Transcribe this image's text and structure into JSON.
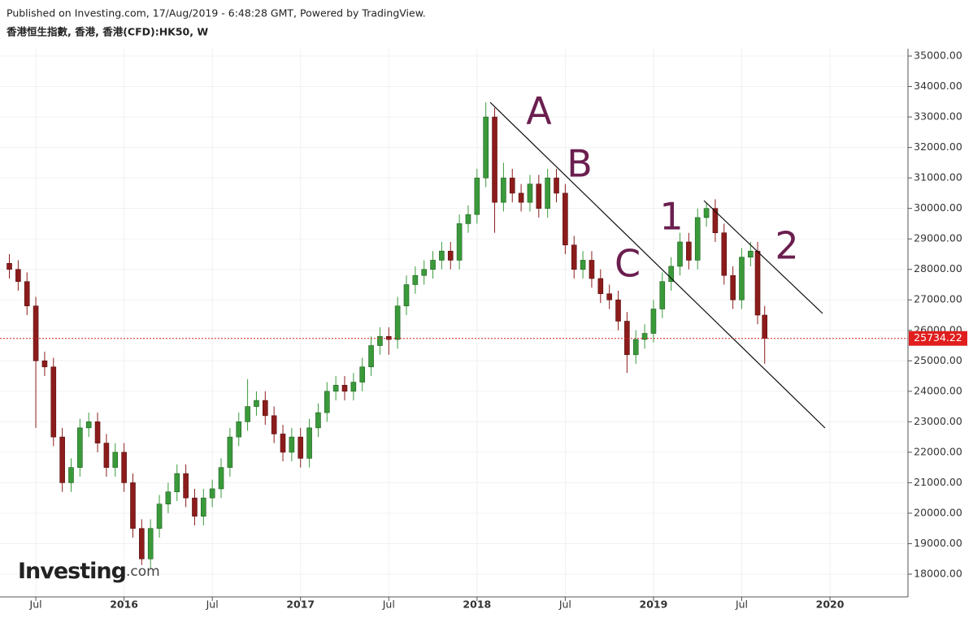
{
  "chart_data": {
    "type": "candlestick",
    "title": "Published on Investing.com, 17/Aug/2019 - 6:48:28 GMT, Powered by TradingView.",
    "subtitle": "香港恒生指數, 香港, 香港(CFD):HK50, W",
    "logo": "Investing",
    "logo_suffix": ".com",
    "annotations": [
      "A",
      "B",
      "C",
      "1",
      "2"
    ],
    "up_color": "#3a9a3a",
    "down_color": "#8c1c1c",
    "grid": true,
    "xlim": [
      2015.297,
      2020.442
    ],
    "ylim": [
      17254,
      35240
    ],
    "xticks": [
      {
        "value": 2015.5,
        "label": "Jul"
      },
      2016,
      {
        "value": 2016.5,
        "label": "Jul"
      },
      2017,
      {
        "value": 2017.5,
        "label": "Jul"
      },
      2018,
      {
        "value": 2018.5,
        "label": "Jul"
      },
      2019,
      {
        "value": 2019.5,
        "label": "Jul"
      },
      2020
    ],
    "yticks": [
      {
        "value": 18000,
        "label": "18000.00"
      },
      {
        "value": 19000,
        "label": "19000.00"
      },
      {
        "value": 20000,
        "label": "20000.00"
      },
      {
        "value": 21000,
        "label": "21000.00"
      },
      {
        "value": 22000,
        "label": "22000.00"
      },
      {
        "value": 23000,
        "label": "23000.00"
      },
      {
        "value": 24000,
        "label": "24000.00"
      },
      {
        "value": 25000,
        "label": "25000.00"
      },
      {
        "value": 26000,
        "label": "26000.00"
      },
      {
        "value": 27000,
        "label": "27000.00"
      },
      {
        "value": 28000,
        "label": "28000.00"
      },
      {
        "value": 29000,
        "label": "29000.00"
      },
      {
        "value": 30000,
        "label": "30000.00"
      },
      {
        "value": 31000,
        "label": "31000.00"
      },
      {
        "value": 32000,
        "label": "32000.00"
      },
      {
        "value": 33000,
        "label": "33000.00"
      },
      {
        "value": 34000,
        "label": "34000.00"
      },
      {
        "value": 35000,
        "label": "35000.00"
      }
    ],
    "x": [
      2015.35,
      2015.4,
      2015.45,
      2015.5,
      2015.55,
      2015.6,
      2015.65,
      2015.7,
      2015.75,
      2015.8,
      2015.85,
      2015.9,
      2015.95,
      2016.0,
      2016.05,
      2016.1,
      2016.15,
      2016.2,
      2016.25,
      2016.3,
      2016.35,
      2016.4,
      2016.45,
      2016.5,
      2016.55,
      2016.6,
      2016.65,
      2016.7,
      2016.75,
      2016.8,
      2016.85,
      2016.9,
      2016.95,
      2017.0,
      2017.05,
      2017.1,
      2017.15,
      2017.2,
      2017.25,
      2017.3,
      2017.35,
      2017.4,
      2017.45,
      2017.5,
      2017.55,
      2017.6,
      2017.65,
      2017.7,
      2017.75,
      2017.8,
      2017.85,
      2017.9,
      2017.95,
      2018.0,
      2018.05,
      2018.1,
      2018.15,
      2018.2,
      2018.25,
      2018.3,
      2018.35,
      2018.4,
      2018.45,
      2018.5,
      2018.55,
      2018.6,
      2018.65,
      2018.7,
      2018.75,
      2018.8,
      2018.85,
      2018.9,
      2018.95,
      2019.0,
      2019.05,
      2019.1,
      2019.15,
      2019.2,
      2019.25,
      2019.3,
      2019.35,
      2019.4,
      2019.45,
      2019.5,
      2019.55,
      2019.59,
      2019.63
    ],
    "open": [
      28200,
      28000,
      27600,
      26800,
      25000,
      24800,
      22500,
      21000,
      21500,
      22800,
      23000,
      22300,
      21500,
      22000,
      21000,
      19500,
      18500,
      19500,
      20300,
      20700,
      21300,
      20500,
      19900,
      20500,
      20800,
      21500,
      22500,
      23000,
      23500,
      23700,
      23200,
      22600,
      22000,
      22500,
      21800,
      22800,
      23300,
      24000,
      24200,
      24000,
      24300,
      24800,
      25500,
      25800,
      25700,
      26800,
      27500,
      27800,
      28000,
      28300,
      28600,
      28300,
      29500,
      29800,
      31000,
      33000,
      30200,
      31000,
      30500,
      30200,
      30800,
      30000,
      31000,
      30500,
      28800,
      28000,
      28300,
      27700,
      27200,
      27000,
      26300,
      25200,
      25700,
      25900,
      26700,
      27600,
      28100,
      28900,
      28300,
      29700,
      30000,
      29200,
      27800,
      27000,
      28400,
      28600,
      26500
    ],
    "high": [
      28500,
      28300,
      27900,
      27100,
      25300,
      25100,
      22800,
      21800,
      23100,
      23300,
      23300,
      22600,
      22300,
      22300,
      21300,
      19800,
      19800,
      20600,
      21000,
      21600,
      21600,
      20800,
      20800,
      21100,
      21800,
      22800,
      23300,
      24400,
      24000,
      24000,
      23500,
      22900,
      22800,
      22800,
      23100,
      23600,
      24300,
      24500,
      24500,
      24600,
      25100,
      25800,
      26100,
      26100,
      27100,
      27800,
      28100,
      28300,
      28600,
      28900,
      28900,
      29800,
      30100,
      31300,
      33480,
      33300,
      31500,
      31300,
      30800,
      31100,
      31100,
      31300,
      31300,
      30800,
      29100,
      28600,
      28600,
      28000,
      27500,
      27300,
      26600,
      26000,
      26200,
      27000,
      27900,
      28400,
      29200,
      29200,
      30000,
      30200,
      30300,
      29500,
      28100,
      28700,
      28900,
      28900,
      26800
    ],
    "low": [
      27700,
      27300,
      26500,
      22800,
      24500,
      22200,
      20700,
      20700,
      21200,
      22500,
      22000,
      21200,
      21200,
      20700,
      19200,
      18300,
      18200,
      19200,
      20000,
      20400,
      20200,
      19600,
      19600,
      20200,
      20500,
      21200,
      22200,
      22700,
      23200,
      22900,
      22300,
      21700,
      21700,
      21500,
      21500,
      22500,
      23000,
      23700,
      23700,
      23700,
      24000,
      24500,
      25200,
      25200,
      25400,
      26500,
      27200,
      27500,
      27700,
      28000,
      28000,
      28000,
      29200,
      29500,
      30700,
      29200,
      29900,
      30200,
      29900,
      29900,
      29700,
      29700,
      30200,
      28500,
      27700,
      27700,
      27400,
      26900,
      26700,
      26000,
      24600,
      24900,
      25400,
      25600,
      26400,
      27300,
      27800,
      28000,
      28000,
      29400,
      28900,
      27500,
      26700,
      26700,
      28100,
      26200,
      24900
    ],
    "close": [
      28000,
      27600,
      26800,
      25000,
      24800,
      22500,
      21000,
      21500,
      22800,
      23000,
      22300,
      21500,
      22000,
      21000,
      19500,
      18500,
      19500,
      20300,
      20700,
      21300,
      20500,
      19900,
      20500,
      20800,
      21500,
      22500,
      23000,
      23500,
      23700,
      23200,
      22600,
      22000,
      22500,
      21800,
      22800,
      23300,
      24000,
      24200,
      24000,
      24300,
      24800,
      25500,
      25800,
      25700,
      26800,
      27500,
      27800,
      28000,
      28300,
      28600,
      28300,
      29500,
      29800,
      31000,
      33000,
      30200,
      31000,
      30500,
      30200,
      30800,
      30000,
      31000,
      30500,
      28800,
      28000,
      28300,
      27700,
      27200,
      27000,
      26300,
      25200,
      25700,
      25900,
      26700,
      27600,
      28100,
      28900,
      28300,
      29700,
      30000,
      29200,
      27800,
      27000,
      28400,
      28600,
      26500,
      25734.22
    ]
  }
}
